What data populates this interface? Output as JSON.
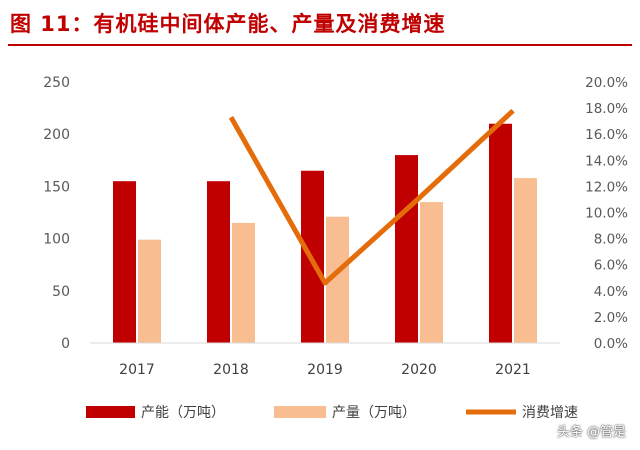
{
  "figure": {
    "title": "图 11：有机硅中间体产能、产量及消费增速"
  },
  "watermark": "头条 @管是",
  "colors": {
    "capacity": "#c00000",
    "output": "#f8be91",
    "growth": "#e46c0a",
    "title": "#c00000"
  },
  "chart_data": {
    "type": "bar",
    "categories": [
      "2017",
      "2018",
      "2019",
      "2020",
      "2021"
    ],
    "series": [
      {
        "name": "产能（万吨）",
        "kind": "bar",
        "axis": "left",
        "values": [
          155,
          155,
          165,
          180,
          210
        ]
      },
      {
        "name": "产量（万吨）",
        "kind": "bar",
        "axis": "left",
        "values": [
          99,
          115,
          121,
          135,
          158
        ]
      },
      {
        "name": "消费增速",
        "kind": "line",
        "axis": "right",
        "values": [
          null,
          17.3,
          4.6,
          11.1,
          17.8
        ]
      }
    ],
    "left_axis": {
      "ylim": [
        0,
        250
      ],
      "ticks": [
        "0",
        "50",
        "100",
        "150",
        "200",
        "250"
      ]
    },
    "right_axis": {
      "ylim": [
        0,
        20
      ],
      "ticks": [
        "0.0%",
        "2.0%",
        "4.0%",
        "6.0%",
        "8.0%",
        "10.0%",
        "12.0%",
        "14.0%",
        "16.0%",
        "18.0%",
        "20.0%"
      ]
    },
    "grid": false,
    "legend_position": "bottom"
  }
}
